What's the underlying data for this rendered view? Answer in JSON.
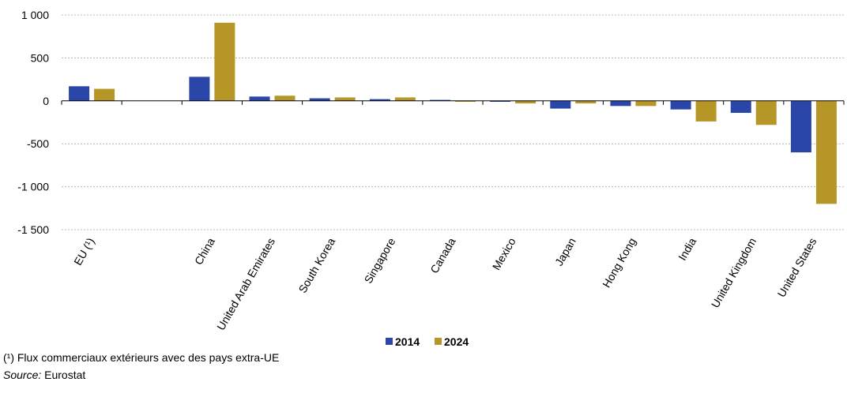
{
  "chart_data": {
    "type": "bar",
    "categories": [
      "EU (¹)",
      "",
      "China",
      "United Arab Emirates",
      "South Korea",
      "Singapore",
      "Canada",
      "Mexico",
      "Japan",
      "Hong Kong",
      "India",
      "United Kingdom",
      "United States"
    ],
    "series": [
      {
        "name": "2014",
        "color": "#2a46a8",
        "values": [
          170,
          null,
          280,
          50,
          30,
          20,
          0,
          -10,
          -90,
          -60,
          -100,
          -140,
          -600
        ]
      },
      {
        "name": "2024",
        "color": "#b59626",
        "values": [
          140,
          null,
          910,
          60,
          40,
          40,
          -10,
          -30,
          -30,
          -60,
          -240,
          -280,
          -1200
        ]
      }
    ],
    "ylim": [
      -1500,
      1000
    ],
    "yticks": [
      1000,
      500,
      0,
      -500,
      -1000,
      -1500
    ],
    "ytick_labels": [
      "1 000",
      "500",
      "0",
      "-500",
      "-1 000",
      "-1 500"
    ],
    "grid": true,
    "legend_position": "bottom-center",
    "title": "",
    "xlabel": "",
    "ylabel": ""
  },
  "footnote": "(¹) Flux commerciaux extérieurs avec des pays extra-UE",
  "source": {
    "label": "Source:",
    "text": " Eurostat"
  }
}
